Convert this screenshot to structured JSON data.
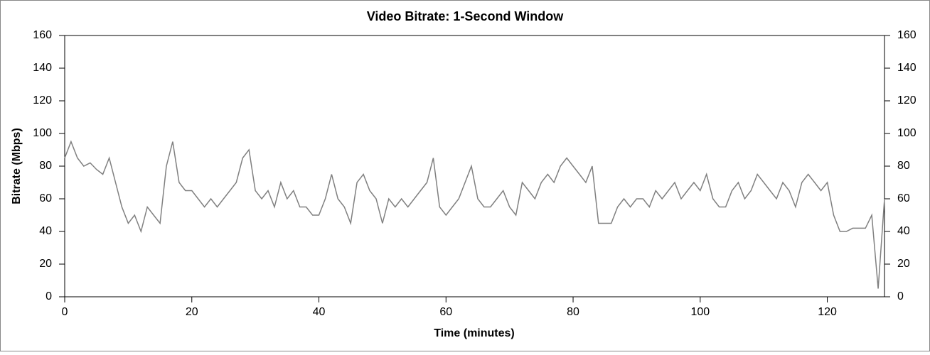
{
  "chart_data": {
    "type": "line",
    "title": "Video Bitrate: 1-Second Window",
    "x_label": "Time (minutes)",
    "y_label": "Bitrate (Mbps)",
    "x": [
      0,
      1,
      2,
      3,
      4,
      5,
      6,
      7,
      8,
      9,
      10,
      11,
      12,
      13,
      14,
      15,
      16,
      17,
      18,
      19,
      20,
      21,
      22,
      23,
      24,
      25,
      26,
      27,
      28,
      29,
      30,
      31,
      32,
      33,
      34,
      35,
      36,
      37,
      38,
      39,
      40,
      41,
      42,
      43,
      44,
      45,
      46,
      47,
      48,
      49,
      50,
      51,
      52,
      53,
      54,
      55,
      56,
      57,
      58,
      59,
      60,
      61,
      62,
      63,
      64,
      65,
      66,
      67,
      68,
      69,
      70,
      71,
      72,
      73,
      74,
      75,
      76,
      77,
      78,
      79,
      80,
      81,
      82,
      83,
      84,
      85,
      86,
      87,
      88,
      89,
      90,
      91,
      92,
      93,
      94,
      95,
      96,
      97,
      98,
      99,
      100,
      101,
      102,
      103,
      104,
      105,
      106,
      107,
      108,
      109,
      110,
      111,
      112,
      113,
      114,
      115,
      116,
      117,
      118,
      119,
      120,
      121,
      122,
      123,
      124,
      125,
      126,
      127,
      128,
      129
    ],
    "series": [
      {
        "name": "Video Bitrate",
        "color": "#808080",
        "values": [
          85,
          95,
          85,
          80,
          82,
          78,
          75,
          85,
          70,
          55,
          45,
          50,
          40,
          55,
          50,
          45,
          80,
          95,
          70,
          65,
          65,
          60,
          55,
          60,
          55,
          60,
          65,
          70,
          85,
          90,
          65,
          60,
          65,
          55,
          70,
          60,
          65,
          55,
          55,
          50,
          50,
          60,
          75,
          60,
          55,
          45,
          70,
          75,
          65,
          60,
          45,
          60,
          55,
          60,
          55,
          60,
          65,
          70,
          85,
          55,
          50,
          55,
          60,
          70,
          80,
          60,
          55,
          55,
          60,
          65,
          55,
          50,
          70,
          65,
          60,
          70,
          75,
          70,
          80,
          85,
          80,
          75,
          70,
          80,
          45,
          45,
          45,
          55,
          60,
          55,
          60,
          60,
          55,
          65,
          60,
          65,
          70,
          60,
          65,
          70,
          65,
          75,
          60,
          55,
          55,
          65,
          70,
          60,
          65,
          75,
          70,
          65,
          60,
          70,
          65,
          55,
          70,
          75,
          70,
          65,
          70,
          50,
          40,
          40,
          42,
          42,
          42,
          50,
          5,
          60
        ]
      }
    ],
    "xlim": [
      0,
      129
    ],
    "xticks": [
      0,
      20,
      40,
      60,
      80,
      100,
      120
    ],
    "ylim": [
      0,
      160
    ],
    "yticks": [
      0,
      20,
      40,
      60,
      80,
      100,
      120,
      140,
      160
    ],
    "y2lim": [
      0,
      160
    ],
    "y2ticks": [
      0,
      20,
      40,
      60,
      80,
      100,
      120,
      140,
      160
    ]
  }
}
